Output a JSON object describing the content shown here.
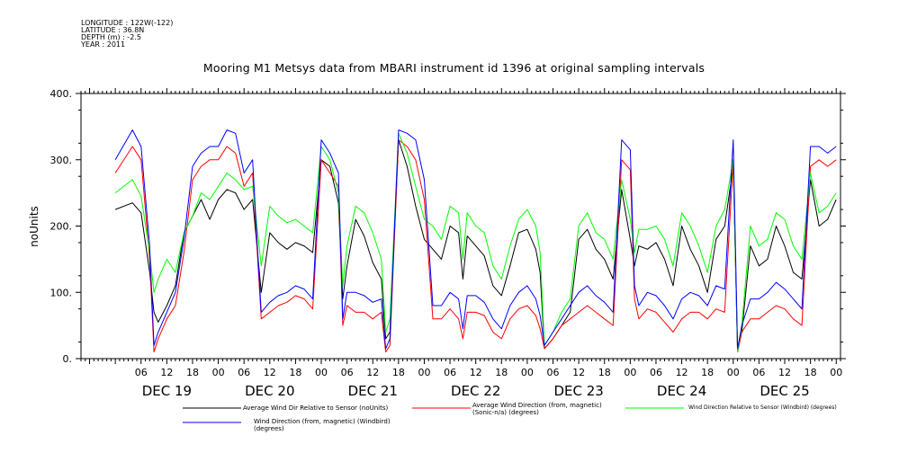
{
  "meta": {
    "longitude": "LONGITUDE : 122W(-122)",
    "latitude": "LATITUDE : 36.8N",
    "depth": "DEPTH (m) : -2.5",
    "year": "YEAR : 2011"
  },
  "colors": {
    "black": "#000000",
    "red": "#ff0000",
    "green": "#00ff00",
    "blue": "#0000ff"
  },
  "chart_data": {
    "type": "line",
    "title": "Mooring M1 Metsys data from MBARI instrument id 1396 at original sampling intervals",
    "ylabel": "noUnits",
    "xlabel": "",
    "ylim": [
      0,
      400
    ],
    "yticks": [
      "0.",
      "100.",
      "200.",
      "300.",
      "400."
    ],
    "hour_ticks": [
      "06",
      "12",
      "18",
      "00",
      "06",
      "12",
      "18",
      "00",
      "06",
      "12",
      "18",
      "00",
      "06",
      "12",
      "18",
      "00",
      "06",
      "12",
      "18",
      "00",
      "06",
      "12",
      "18",
      "00",
      "06",
      "12",
      "18",
      "00"
    ],
    "day_labels": [
      "DEC 19",
      "DEC 20",
      "DEC 21",
      "DEC 22",
      "DEC 23",
      "DEC 24",
      "DEC 25"
    ],
    "grid": false,
    "legend_position": "bottom",
    "series": [
      {
        "name": "Average Wind Dir Relative to Sensor (noUnits)",
        "color": "#000000",
        "x": [
          0,
          4,
          6,
          8,
          9,
          10,
          12,
          14,
          16,
          18,
          20,
          22,
          24,
          26,
          28,
          30,
          32,
          33,
          34,
          36,
          38,
          40,
          42,
          44,
          46,
          48,
          50,
          52,
          53,
          54,
          56,
          58,
          60,
          62,
          63,
          64,
          66,
          68,
          70,
          72,
          74,
          76,
          78,
          80,
          81,
          82,
          84,
          86,
          88,
          90,
          92,
          94,
          96,
          98,
          99,
          100,
          102,
          104,
          106,
          108,
          110,
          112,
          114,
          116,
          118,
          120,
          121,
          122,
          124,
          126,
          128,
          130,
          132,
          134,
          136,
          138,
          140,
          142,
          144,
          145,
          146,
          148,
          150,
          152,
          154,
          156,
          158,
          160,
          162,
          164,
          166,
          168
        ],
        "values": [
          225,
          235,
          220,
          130,
          70,
          55,
          80,
          110,
          190,
          215,
          240,
          210,
          240,
          255,
          250,
          225,
          240,
          170,
          100,
          190,
          175,
          165,
          175,
          170,
          160,
          300,
          290,
          235,
          90,
          140,
          210,
          185,
          145,
          120,
          30,
          40,
          330,
          290,
          230,
          180,
          165,
          150,
          200,
          190,
          120,
          185,
          170,
          155,
          110,
          95,
          140,
          190,
          195,
          165,
          130,
          15,
          30,
          50,
          70,
          180,
          195,
          165,
          150,
          120,
          255,
          180,
          140,
          170,
          165,
          175,
          150,
          110,
          200,
          165,
          140,
          100,
          180,
          200,
          290,
          10,
          40,
          170,
          140,
          150,
          200,
          170,
          130,
          120,
          270,
          200,
          210,
          240
        ]
      },
      {
        "name": "Average Wind Direction (from, magnetic) (Sonic-n/a) (degrees)",
        "color": "#ff0000",
        "x": [
          0,
          4,
          6,
          8,
          9,
          10,
          12,
          14,
          16,
          18,
          20,
          22,
          24,
          26,
          28,
          30,
          32,
          33,
          34,
          36,
          38,
          40,
          42,
          44,
          46,
          48,
          50,
          52,
          53,
          54,
          56,
          58,
          60,
          62,
          63,
          64,
          66,
          68,
          70,
          72,
          74,
          76,
          78,
          80,
          81,
          82,
          84,
          86,
          88,
          90,
          92,
          94,
          96,
          98,
          99,
          100,
          102,
          104,
          106,
          108,
          110,
          112,
          114,
          116,
          118,
          120,
          121,
          122,
          124,
          126,
          128,
          130,
          132,
          134,
          136,
          138,
          140,
          142,
          144,
          145,
          146,
          148,
          150,
          152,
          154,
          156,
          158,
          160,
          162,
          164,
          166,
          168
        ],
        "values": [
          280,
          320,
          300,
          150,
          10,
          30,
          60,
          80,
          160,
          270,
          290,
          300,
          300,
          320,
          310,
          260,
          280,
          170,
          60,
          70,
          80,
          85,
          95,
          90,
          75,
          300,
          280,
          260,
          50,
          80,
          70,
          70,
          60,
          70,
          10,
          20,
          330,
          320,
          300,
          240,
          60,
          60,
          75,
          60,
          30,
          70,
          70,
          65,
          40,
          30,
          60,
          75,
          80,
          65,
          45,
          15,
          30,
          50,
          60,
          70,
          80,
          70,
          60,
          50,
          300,
          285,
          90,
          60,
          75,
          70,
          55,
          40,
          60,
          70,
          70,
          60,
          75,
          70,
          300,
          10,
          40,
          60,
          60,
          70,
          80,
          75,
          60,
          50,
          290,
          300,
          290,
          300
        ]
      },
      {
        "name": "Wind Direction Relative to Sensor (Windbird) (degrees)",
        "color": "#00ff00",
        "x": [
          0,
          4,
          6,
          8,
          9,
          10,
          12,
          14,
          16,
          18,
          20,
          22,
          24,
          26,
          28,
          30,
          32,
          33,
          34,
          36,
          38,
          40,
          42,
          44,
          46,
          48,
          50,
          52,
          53,
          54,
          56,
          58,
          60,
          62,
          63,
          64,
          66,
          68,
          70,
          72,
          74,
          76,
          78,
          80,
          81,
          82,
          84,
          86,
          88,
          90,
          92,
          94,
          96,
          98,
          99,
          100,
          102,
          104,
          106,
          108,
          110,
          112,
          114,
          116,
          118,
          120,
          121,
          122,
          124,
          126,
          128,
          130,
          132,
          134,
          136,
          138,
          140,
          142,
          144,
          145,
          146,
          148,
          150,
          152,
          154,
          156,
          158,
          160,
          162,
          164,
          166,
          168
        ],
        "values": [
          250,
          270,
          245,
          160,
          100,
          120,
          150,
          130,
          190,
          215,
          250,
          240,
          260,
          280,
          270,
          255,
          260,
          200,
          140,
          230,
          215,
          205,
          210,
          200,
          190,
          320,
          300,
          250,
          110,
          170,
          230,
          220,
          190,
          150,
          40,
          60,
          340,
          310,
          260,
          210,
          200,
          180,
          230,
          220,
          150,
          220,
          200,
          190,
          140,
          120,
          170,
          210,
          225,
          200,
          160,
          20,
          40,
          70,
          90,
          200,
          220,
          190,
          180,
          150,
          270,
          210,
          160,
          195,
          195,
          200,
          180,
          140,
          220,
          200,
          170,
          130,
          200,
          225,
          300,
          10,
          50,
          200,
          170,
          180,
          220,
          210,
          170,
          150,
          280,
          220,
          230,
          250
        ]
      },
      {
        "name": "Wind Direction (from, magnetic) (Windbird) (degrees)",
        "color": "#0000ff",
        "x": [
          0,
          4,
          6,
          8,
          9,
          10,
          12,
          14,
          16,
          18,
          20,
          22,
          24,
          26,
          28,
          30,
          32,
          33,
          34,
          36,
          38,
          40,
          42,
          44,
          46,
          48,
          50,
          52,
          53,
          54,
          56,
          58,
          60,
          62,
          63,
          64,
          66,
          68,
          70,
          72,
          74,
          76,
          78,
          80,
          81,
          82,
          84,
          86,
          88,
          90,
          92,
          94,
          96,
          98,
          99,
          100,
          102,
          104,
          106,
          108,
          110,
          112,
          114,
          116,
          118,
          120,
          121,
          122,
          124,
          126,
          128,
          130,
          132,
          134,
          136,
          138,
          140,
          142,
          144,
          145,
          146,
          148,
          150,
          152,
          154,
          156,
          158,
          160,
          162,
          164,
          166,
          168
        ],
        "values": [
          300,
          345,
          320,
          170,
          20,
          40,
          70,
          100,
          180,
          290,
          310,
          320,
          320,
          345,
          340,
          280,
          300,
          180,
          70,
          85,
          95,
          100,
          110,
          105,
          90,
          330,
          310,
          280,
          60,
          100,
          100,
          95,
          85,
          90,
          15,
          30,
          345,
          340,
          330,
          270,
          80,
          80,
          100,
          90,
          45,
          95,
          95,
          85,
          60,
          45,
          80,
          100,
          110,
          90,
          65,
          20,
          40,
          60,
          80,
          100,
          110,
          95,
          85,
          70,
          330,
          315,
          110,
          80,
          100,
          95,
          80,
          60,
          90,
          100,
          95,
          80,
          110,
          105,
          330,
          15,
          50,
          90,
          90,
          100,
          115,
          105,
          90,
          75,
          320,
          320,
          310,
          320
        ]
      }
    ]
  }
}
